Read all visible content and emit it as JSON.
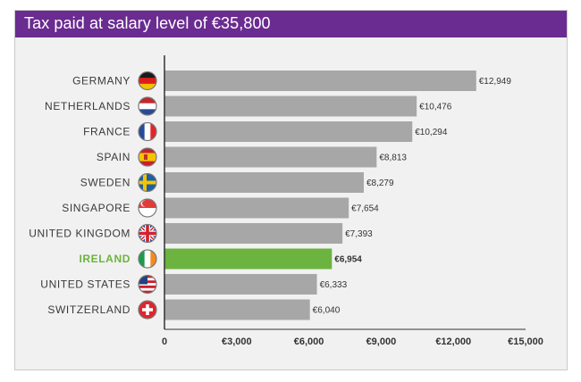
{
  "chart_data": {
    "type": "bar",
    "orientation": "horizontal",
    "title": "Tax paid at salary level of €35,800",
    "categories": [
      "GERMANY",
      "NETHERLANDS",
      "FRANCE",
      "SPAIN",
      "SWEDEN",
      "SINGAPORE",
      "UNITED KINGDOM",
      "IRELAND",
      "UNITED STATES",
      "SWITZERLAND"
    ],
    "values": [
      12949,
      10476,
      10294,
      8813,
      8279,
      7654,
      7393,
      6954,
      6333,
      6040
    ],
    "value_labels": [
      "€12,949",
      "€10,476",
      "€10,294",
      "€8,813",
      "€8,279",
      "€7,654",
      "€7,393",
      "€6,954",
      "€6,333",
      "€6,040"
    ],
    "highlight": "IRELAND",
    "xlim": [
      0,
      15000
    ],
    "xticks": [
      0,
      3000,
      6000,
      9000,
      12000,
      15000
    ],
    "xtick_labels": [
      "0",
      "€3,000",
      "€6,000",
      "€9,000",
      "€12,000",
      "€15,000"
    ],
    "grid": false,
    "legend": "none",
    "flags": [
      "germany-flag-icon",
      "netherlands-flag-icon",
      "france-flag-icon",
      "spain-flag-icon",
      "sweden-flag-icon",
      "singapore-flag-icon",
      "united-kingdom-flag-icon",
      "ireland-flag-icon",
      "united-states-flag-icon",
      "switzerland-flag-icon"
    ]
  },
  "colors": {
    "title_bar": "#6a2c90",
    "bar": "#a7a7a7",
    "bar_highlight": "#6cb33f",
    "background": "#f1f1f1"
  }
}
